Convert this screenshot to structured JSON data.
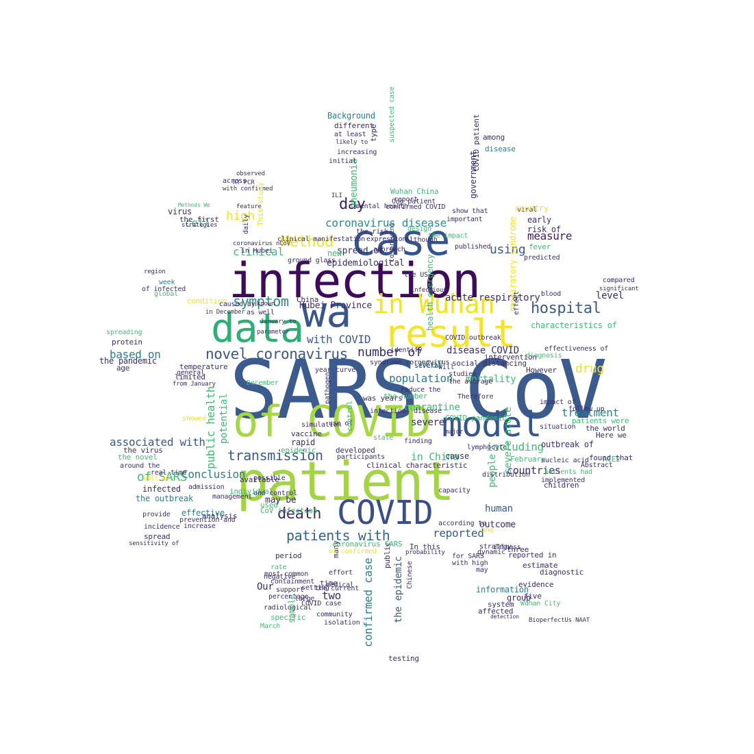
{
  "words": [
    {
      "text": "SARS CoV",
      "color": "#3b5b8f"
    },
    {
      "text": "patient",
      "color": "#a2d443"
    },
    {
      "text": "infection",
      "color": "#3e0a5c"
    },
    {
      "text": "case",
      "color": "#34558c"
    },
    {
      "text": "wa",
      "color": "#3a578d"
    },
    {
      "text": "result",
      "color": "#f4e326"
    },
    {
      "text": "data",
      "color": "#2fae74"
    },
    {
      "text": "of COVID",
      "color": "#a6d841"
    },
    {
      "text": "model",
      "color": "#34568c"
    },
    {
      "text": "COVID",
      "color": "#3a4f8a"
    },
    {
      "text": "in Wuhan",
      "color": "#f2e41f"
    },
    {
      "text": "transmission",
      "color": "#3b5c8c"
    },
    {
      "text": "novel coronavirus",
      "color": "#3a568c"
    },
    {
      "text": "symptom",
      "color": "#2c8a8a"
    },
    {
      "text": "hospital",
      "color": "#3a5a8c"
    },
    {
      "text": "death",
      "color": "#3f2a6a"
    },
    {
      "text": "patients with",
      "color": "#32648e"
    },
    {
      "text": "number of",
      "color": "#3b2c6b"
    },
    {
      "text": "Method",
      "color": "#f0e12a"
    },
    {
      "text": "coronavirus disease",
      "color": "#2a8e8a"
    },
    {
      "text": "day",
      "color": "#3b1f5c"
    },
    {
      "text": "clinical",
      "color": "#3fbc73"
    },
    {
      "text": "using",
      "color": "#3a5a8c"
    },
    {
      "text": "measure",
      "color": "#3e1f5c"
    },
    {
      "text": "public health",
      "color": "#3fbb72"
    },
    {
      "text": "potential",
      "color": "#3fbb72"
    },
    {
      "text": "based on",
      "color": "#2a7f8b"
    },
    {
      "text": "with COVID",
      "color": "#3a5a8c"
    },
    {
      "text": "disease COVID",
      "color": "#3b2c6b"
    },
    {
      "text": "associated with",
      "color": "#3a5a8c"
    },
    {
      "text": "treatment",
      "color": "#2a7f8b"
    },
    {
      "text": "including",
      "color": "#3fbb72"
    },
    {
      "text": "countries",
      "color": "#3b2c6b"
    },
    {
      "text": "Conclusion",
      "color": "#2a7f8b"
    },
    {
      "text": "of SARS",
      "color": "#3fbb72"
    },
    {
      "text": "population",
      "color": "#2a7f8b"
    },
    {
      "text": "level",
      "color": "#3b2c6b"
    },
    {
      "text": "drug",
      "color": "#f0e12a"
    },
    {
      "text": "high",
      "color": "#f0e12a"
    },
    {
      "text": "cell",
      "color": "#3fbb72"
    },
    {
      "text": "confirmed case",
      "color": "#2a7f8b"
    },
    {
      "text": "the epidemic",
      "color": "#3a5a8c"
    },
    {
      "text": "reported",
      "color": "#3a5a8c"
    },
    {
      "text": "human",
      "color": "#3a5a8c"
    },
    {
      "text": "two",
      "color": "#3b2c6b"
    },
    {
      "text": "Our",
      "color": "#3b2c6b"
    },
    {
      "text": "in China",
      "color": "#3fbb72"
    },
    {
      "text": "nCoV",
      "color": "#3fbb72"
    },
    {
      "text": "mortality",
      "color": "#3fbb72"
    },
    {
      "text": "quarantine",
      "color": "#3fbb72"
    },
    {
      "text": "severe",
      "color": "#3b2c6b"
    },
    {
      "text": "Hubei Province",
      "color": "#3b2c6b"
    },
    {
      "text": "acute respiratory",
      "color": "#3b2c6b"
    },
    {
      "text": "virus",
      "color": "#3b2c6b"
    },
    {
      "text": "spread of",
      "color": "#3b2c6b"
    },
    {
      "text": "epidemiological",
      "color": "#3b2c6b"
    },
    {
      "text": "the first",
      "color": "#3b2c6b"
    },
    {
      "text": "Background",
      "color": "#2a7f8b"
    },
    {
      "text": "different",
      "color": "#3b2c6b"
    },
    {
      "text": "pneumonia",
      "color": "#3fbb72"
    },
    {
      "text": "government",
      "color": "#3b2c6b"
    },
    {
      "text": "Wuhan China",
      "color": "#3fbb72"
    },
    {
      "text": "report",
      "color": "#3b2c6b"
    },
    {
      "text": "confirmed COVID",
      "color": "#3b2c6b"
    },
    {
      "text": "across",
      "color": "#3b2c6b"
    },
    {
      "text": "with confirmed",
      "color": "#3b2c6b"
    },
    {
      "text": "Methods We",
      "color": "#3fbb72"
    },
    {
      "text": "daily",
      "color": "#3b2c6b"
    },
    {
      "text": "This study",
      "color": "#f0e12a"
    },
    {
      "text": "coronavirus nCoV",
      "color": "#3b2c6b"
    },
    {
      "text": "ground glass",
      "color": "#3b2c6b"
    },
    {
      "text": "China",
      "color": "#3b2c6b"
    },
    {
      "text": "week",
      "color": "#2a7f8b"
    },
    {
      "text": "of infected",
      "color": "#3b2c6b"
    },
    {
      "text": "condition",
      "color": "#f0e12a"
    },
    {
      "text": "caused by",
      "color": "#3b2c6b"
    },
    {
      "text": "in December",
      "color": "#3b2c6b"
    },
    {
      "text": "protein",
      "color": "#3b2c6b"
    },
    {
      "text": "spreading",
      "color": "#3fbb72"
    },
    {
      "text": "the pandemic",
      "color": "#3b2c6b"
    },
    {
      "text": "age",
      "color": "#3b2c6b"
    },
    {
      "text": "limited",
      "color": "#3b2c6b"
    },
    {
      "text": "from January",
      "color": "#3b2c6b"
    },
    {
      "text": "the virus",
      "color": "#3b2c6b"
    },
    {
      "text": "the novel",
      "color": "#3fbb72"
    },
    {
      "text": "around the",
      "color": "#3b2c6b"
    },
    {
      "text": "infected",
      "color": "#3b2c6b"
    },
    {
      "text": "the outbreak",
      "color": "#2a7f8b"
    },
    {
      "text": "effective",
      "color": "#2a7f8b"
    },
    {
      "text": "prevention and",
      "color": "#3b2c6b"
    },
    {
      "text": "increase",
      "color": "#3b2c6b"
    },
    {
      "text": "available",
      "color": "#3b2c6b"
    },
    {
      "text": "individual",
      "color": "#3fbb72"
    },
    {
      "text": "may be",
      "color": "#3b2c6b"
    },
    {
      "text": "used",
      "color": "#3fbb72"
    },
    {
      "text": "vaccine",
      "color": "#3b2c6b"
    },
    {
      "text": "rapid",
      "color": "#3b2c6b"
    },
    {
      "text": "COVID pandemic",
      "color": "#3fbb72"
    },
    {
      "text": "the world",
      "color": "#3b2c6b"
    },
    {
      "text": "Here we",
      "color": "#3b2c6b"
    },
    {
      "text": "outbreak of",
      "color": "#3b2c6b"
    },
    {
      "text": "ACE2",
      "color": "#3fbb72"
    },
    {
      "text": "February",
      "color": "#3fbb72"
    },
    {
      "text": "outcome",
      "color": "#3b2c6b"
    },
    {
      "text": "period",
      "color": "#3b2c6b"
    },
    {
      "text": "coronavirus SARS",
      "color": "#3fbb72"
    },
    {
      "text": "In this",
      "color": "#3b2c6b"
    },
    {
      "text": "rate",
      "color": "#3fbb72"
    },
    {
      "text": "most common",
      "color": "#3b2c6b"
    },
    {
      "text": "containment",
      "color": "#3b2c6b"
    },
    {
      "text": "support",
      "color": "#3b2c6b"
    },
    {
      "text": "percentage",
      "color": "#3b2c6b"
    },
    {
      "text": "radiological",
      "color": "#3b2c6b"
    },
    {
      "text": "specific",
      "color": "#3fbb72"
    },
    {
      "text": "sample",
      "color": "#3fbb72"
    },
    {
      "text": "March",
      "color": "#3fbb72"
    },
    {
      "text": "time",
      "color": "#3b2c6b"
    },
    {
      "text": "the current",
      "color": "#3b2c6b"
    },
    {
      "text": "COVID case",
      "color": "#3b2c6b"
    },
    {
      "text": "community",
      "color": "#3b2c6b"
    },
    {
      "text": "isolation",
      "color": "#3b2c6b"
    },
    {
      "text": "testing",
      "color": "#3b2c6b"
    },
    {
      "text": "information",
      "color": "#2a7f8b"
    },
    {
      "text": "affected",
      "color": "#3b2c6b"
    },
    {
      "text": "system",
      "color": "#3b2c6b"
    },
    {
      "text": "group",
      "color": "#3b2c6b"
    },
    {
      "text": "detection",
      "color": "#3b2c6b"
    },
    {
      "text": "evidence",
      "color": "#3b2c6b"
    },
    {
      "text": "estimate",
      "color": "#3b2c6b"
    },
    {
      "text": "three",
      "color": "#3b2c6b"
    },
    {
      "text": "diagnostic",
      "color": "#3b2c6b"
    },
    {
      "text": "five",
      "color": "#3b2c6b"
    },
    {
      "text": "However",
      "color": "#3b2c6b"
    },
    {
      "text": "early",
      "color": "#3b2c6b"
    },
    {
      "text": "viral",
      "color": "#3b2c6b"
    },
    {
      "text": "risk of",
      "color": "#3b2c6b"
    },
    {
      "text": "country",
      "color": "#f0e12a"
    },
    {
      "text": "fever",
      "color": "#3fbb72"
    },
    {
      "text": "predicted",
      "color": "#3b2c6b"
    },
    {
      "text": "compared",
      "color": "#3b2c6b"
    },
    {
      "text": "significant",
      "color": "#3b2c6b"
    },
    {
      "text": "characteristics of",
      "color": "#3fbb72"
    },
    {
      "text": "COVID outbreak",
      "color": "#3b2c6b"
    },
    {
      "text": "intervention",
      "color": "#3b2c6b"
    },
    {
      "text": "diagnosis",
      "color": "#3fbb72"
    },
    {
      "text": "impact of",
      "color": "#3b2c6b"
    },
    {
      "text": "follow up",
      "color": "#3b2c6b"
    },
    {
      "text": "patients were",
      "color": "#3fbb72"
    },
    {
      "text": "found that",
      "color": "#3b2c6b"
    },
    {
      "text": "Abstract",
      "color": "#3b2c6b"
    },
    {
      "text": "nucleic acid",
      "color": "#3b2c6b"
    },
    {
      "text": "children",
      "color": "#3b2c6b"
    },
    {
      "text": "lymphocyte",
      "color": "#3b2c6b"
    },
    {
      "text": "cause",
      "color": "#3b2c6b"
    },
    {
      "text": "finding",
      "color": "#3b2c6b"
    },
    {
      "text": "the number",
      "color": "#3fbb72"
    },
    {
      "text": "infectious disease",
      "color": "#3b2c6b"
    },
    {
      "text": "was years",
      "color": "#3b2c6b"
    },
    {
      "text": "use of",
      "color": "#3b2c6b"
    },
    {
      "text": "simulation",
      "color": "#3b2c6b"
    },
    {
      "text": "epidemic",
      "color": "#3fbb72"
    },
    {
      "text": "management",
      "color": "#3b2c6b"
    },
    {
      "text": "analysis",
      "color": "#3b2c6b"
    },
    {
      "text": "spread",
      "color": "#3b2c6b"
    },
    {
      "text": "admission",
      "color": "#3b2c6b"
    },
    {
      "text": "real time",
      "color": "#3b2c6b"
    },
    {
      "text": "provide",
      "color": "#3b2c6b"
    },
    {
      "text": "incidence",
      "color": "#3b2c6b"
    },
    {
      "text": "temperature",
      "color": "#3b2c6b"
    },
    {
      "text": "general",
      "color": "#3b2c6b"
    },
    {
      "text": "January to",
      "color": "#3b2c6b"
    },
    {
      "text": "parameter",
      "color": "#3b2c6b"
    },
    {
      "text": "as well",
      "color": "#3b2c6b"
    },
    {
      "text": "known",
      "color": "#3b2c6b"
    },
    {
      "text": "identify",
      "color": "#3b2c6b"
    },
    {
      "text": "syndrome coronavirus",
      "color": "#3b2c6b"
    },
    {
      "text": "social distancing",
      "color": "#3b2c6b"
    },
    {
      "text": "Although",
      "color": "#3b2c6b"
    },
    {
      "text": "mental health",
      "color": "#3b2c6b"
    },
    {
      "text": "new",
      "color": "#3fbb72"
    },
    {
      "text": "important",
      "color": "#3b2c6b"
    },
    {
      "text": "among",
      "color": "#3b2c6b"
    },
    {
      "text": "disease",
      "color": "#2a7f8b"
    },
    {
      "text": "at least",
      "color": "#3b2c6b"
    },
    {
      "text": "initial",
      "color": "#3b2c6b"
    },
    {
      "text": "feature",
      "color": "#3b2c6b"
    },
    {
      "text": "strategies",
      "color": "#3b2c6b"
    },
    {
      "text": "observed",
      "color": "#3b2c6b"
    },
    {
      "text": "RT PCR",
      "color": "#3b2c6b"
    },
    {
      "text": "One patient",
      "color": "#3b2c6b"
    },
    {
      "text": "respiratory syndrome",
      "color": "#f0e12a"
    },
    {
      "text": "health emergency",
      "color": "#3fbb72"
    },
    {
      "text": "COVID patient",
      "color": "#3b2c6b"
    },
    {
      "text": "reported in",
      "color": "#3b2c6b"
    },
    {
      "text": "dynamic",
      "color": "#3b2c6b"
    },
    {
      "text": "with high",
      "color": "#3b2c6b"
    },
    {
      "text": "for SARS",
      "color": "#3b2c6b"
    },
    {
      "text": "strategy",
      "color": "#3b2c6b"
    },
    {
      "text": "illness",
      "color": "#3b2c6b"
    },
    {
      "text": "Wuhan City",
      "color": "#3fbb72"
    },
    {
      "text": "BioperfectUs NAAT",
      "color": "#3b2c6b"
    },
    {
      "text": "people",
      "color": "#3fbb72"
    },
    {
      "text": "severe acute",
      "color": "#3fbb72"
    },
    {
      "text": "clinical characteristic",
      "color": "#3b2c6b"
    },
    {
      "text": "pathogen",
      "color": "#3b2c6b"
    },
    {
      "text": "developed",
      "color": "#3b2c6b"
    },
    {
      "text": "participants",
      "color": "#3b2c6b"
    },
    {
      "text": "control",
      "color": "#3fbb72"
    },
    {
      "text": "many",
      "color": "#3b2c6b"
    },
    {
      "text": "effort",
      "color": "#3b2c6b"
    },
    {
      "text": "negative",
      "color": "#3b2c6b"
    },
    {
      "text": "public",
      "color": "#3b2c6b"
    },
    {
      "text": "Chinese",
      "color": "#3b2c6b"
    },
    {
      "text": "medical",
      "color": "#3b2c6b"
    },
    {
      "text": "setting",
      "color": "#3b2c6b"
    },
    {
      "text": "large",
      "color": "#3b2c6b"
    },
    {
      "text": "probability",
      "color": "#3b2c6b"
    },
    {
      "text": "CoV infection",
      "color": "#3fbb72"
    },
    {
      "text": "of confirmed",
      "color": "#f0e12a"
    },
    {
      "text": "and control",
      "color": "#3b2c6b"
    },
    {
      "text": "possible",
      "color": "#3b2c6b"
    },
    {
      "text": "year",
      "color": "#3b2c6b"
    },
    {
      "text": "curve",
      "color": "#3b2c6b"
    },
    {
      "text": "reduce the",
      "color": "#3b2c6b"
    },
    {
      "text": "Therefore",
      "color": "#3b2c6b"
    },
    {
      "text": "several",
      "color": "#3b2c6b"
    },
    {
      "text": "will",
      "color": "#3b2c6b"
    },
    {
      "text": "studies",
      "color": "#3b2c6b"
    },
    {
      "text": "the average",
      "color": "#3b2c6b"
    },
    {
      "text": "approach",
      "color": "#3b2c6b"
    },
    {
      "text": "published",
      "color": "#3b2c6b"
    },
    {
      "text": "show that",
      "color": "#3b2c6b"
    },
    {
      "text": "to prevent",
      "color": "#3b2c6b"
    },
    {
      "text": "the impact",
      "color": "#3fbb72"
    },
    {
      "text": "design",
      "color": "#3fbb72"
    },
    {
      "text": "increasing",
      "color": "#3b2c6b"
    },
    {
      "text": "likely to",
      "color": "#3b2c6b"
    },
    {
      "text": "type",
      "color": "#3b2c6b"
    },
    {
      "text": "suspected case",
      "color": "#3fbb72"
    },
    {
      "text": "the risk",
      "color": "#3b2c6b"
    },
    {
      "text": "expression",
      "color": "#3b2c6b"
    },
    {
      "text": "in Hubei",
      "color": "#3b2c6b"
    },
    {
      "text": "clinical manifestation",
      "color": "#3b2c6b"
    },
    {
      "text": "region",
      "color": "#3b2c6b"
    },
    {
      "text": "global",
      "color": "#3fbb72"
    },
    {
      "text": "December",
      "color": "#3fbb72"
    },
    {
      "text": "effectiveness of",
      "color": "#3b2c6b"
    },
    {
      "text": "situation",
      "color": "#3b2c6b"
    },
    {
      "text": "state",
      "color": "#3fbb72"
    },
    {
      "text": "patients had",
      "color": "#3fbb72"
    },
    {
      "text": "implemented",
      "color": "#3b2c6b"
    },
    {
      "text": "showed",
      "color": "#f0e12a"
    },
    {
      "text": "ILI",
      "color": "#3b2c6b"
    },
    {
      "text": "the US",
      "color": "#3b2c6b"
    },
    {
      "text": "one",
      "color": "#f0e12a"
    },
    {
      "text": "may",
      "color": "#3b2c6b"
    },
    {
      "text": "according to",
      "color": "#3b2c6b"
    },
    {
      "text": "capacity",
      "color": "#3b2c6b"
    },
    {
      "text": "distribution",
      "color": "#3b2c6b"
    },
    {
      "text": "major",
      "color": "#3b2c6b"
    },
    {
      "text": "effect",
      "color": "#3b2c6b"
    },
    {
      "text": "blood",
      "color": "#3b2c6b"
    },
    {
      "text": "sensitivity of",
      "color": "#3b2c6b"
    },
    {
      "text": "well as",
      "color": "#f0e12a"
    },
    {
      "text": "infectious",
      "color": "#3b2c6b"
    }
  ]
}
